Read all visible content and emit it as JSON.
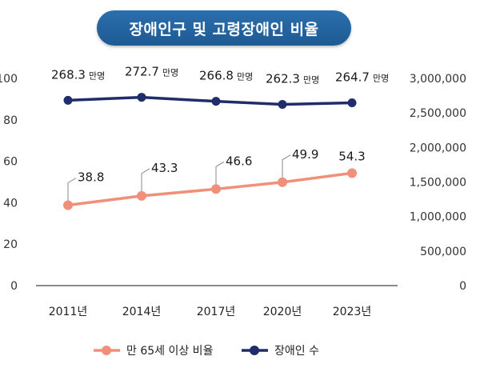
{
  "title": "장애인구 및 고령장애인 비율",
  "colors": {
    "title_bg": "#2a6fad",
    "ratio_line": "#f0907a",
    "population_line": "#1f2d6b"
  },
  "chart_data": {
    "type": "line",
    "title": "장애인구 및 고령장애인 비율",
    "categories": [
      "2011년",
      "2014년",
      "2017년",
      "2020년",
      "2023년"
    ],
    "y_left": {
      "ticks": [
        "0",
        "20",
        "40",
        "60",
        "80",
        "100"
      ],
      "ylim": [
        0,
        100
      ]
    },
    "y_right": {
      "ticks": [
        "0",
        "500,000",
        "1,000,000",
        "1,500,000",
        "2,000,000",
        "2,500,000",
        "3,000,000"
      ],
      "ylim": [
        0,
        3000000
      ]
    },
    "series": [
      {
        "name": "만 65세 이상 비율",
        "axis": "left",
        "values": [
          38.8,
          43.3,
          46.6,
          49.9,
          54.3
        ],
        "labels": [
          "38.8",
          "43.3",
          "46.6",
          "49.9",
          "54.3"
        ]
      },
      {
        "name": "장애인 수",
        "axis": "right",
        "values": [
          2683000,
          2727000,
          2668000,
          2623000,
          2647000
        ],
        "labels": [
          "268.3",
          "272.7",
          "266.8",
          "262.3",
          "264.7"
        ],
        "label_unit": "만명"
      }
    ],
    "legend_position": "bottom",
    "grid": false
  }
}
